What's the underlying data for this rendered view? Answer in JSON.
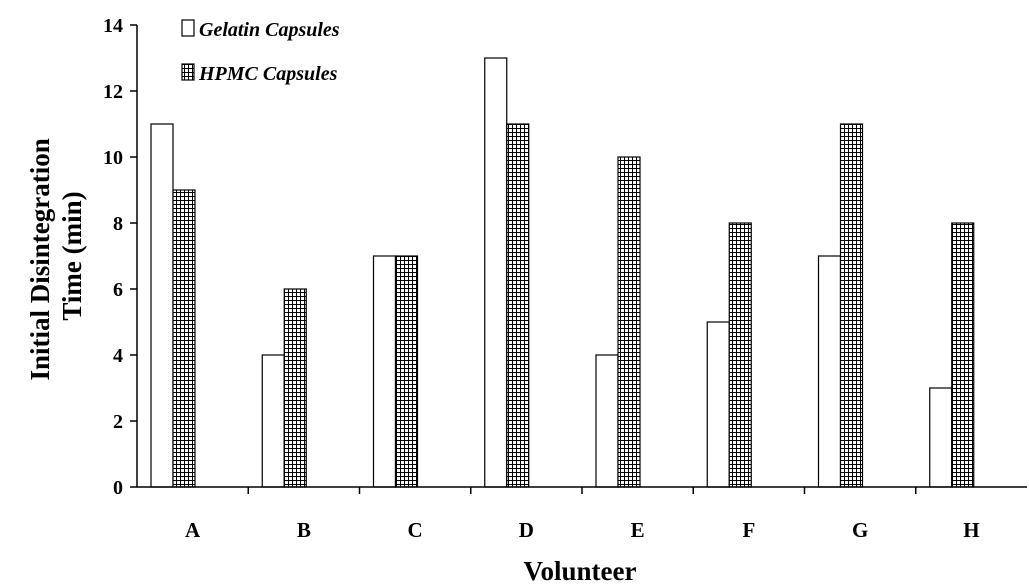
{
  "chart_data": {
    "type": "bar",
    "xlabel": "Volunteer",
    "ylabel_lines": [
      "Initial Disintegration",
      "Time (min)"
    ],
    "categories": [
      "A",
      "B",
      "C",
      "D",
      "E",
      "F",
      "G",
      "H"
    ],
    "ylim": [
      0,
      14
    ],
    "yticks": [
      0,
      2,
      4,
      6,
      8,
      10,
      12,
      14
    ],
    "grid": false,
    "legend_position": "top-left",
    "series": [
      {
        "name": "Gelatin Capsules",
        "values": [
          11,
          4,
          7,
          13,
          4,
          5,
          7,
          3
        ],
        "fill": "#ffffff",
        "pattern": "none"
      },
      {
        "name": "HPMC Capsules",
        "values": [
          9,
          6,
          7,
          11,
          10,
          8,
          11,
          8
        ],
        "fill": "#ffffff",
        "pattern": "grid"
      }
    ]
  }
}
